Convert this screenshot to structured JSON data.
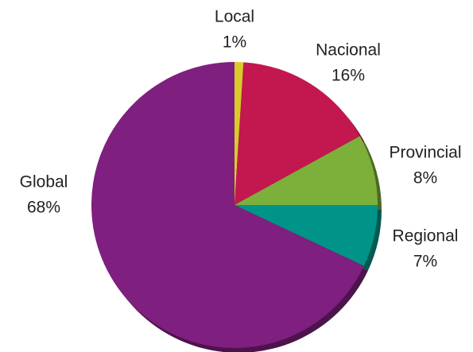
{
  "chart_data": {
    "type": "pie",
    "categories": [
      "Local",
      "Nacional",
      "Provincial",
      "Regional",
      "Global"
    ],
    "values": [
      1,
      16,
      8,
      7,
      68
    ],
    "value_labels": [
      "1%",
      "16%",
      "8%",
      "7%",
      "68%"
    ],
    "colors": [
      "#d9cb2a",
      "#c2184f",
      "#7db03a",
      "#009488",
      "#7f1f7f"
    ]
  }
}
